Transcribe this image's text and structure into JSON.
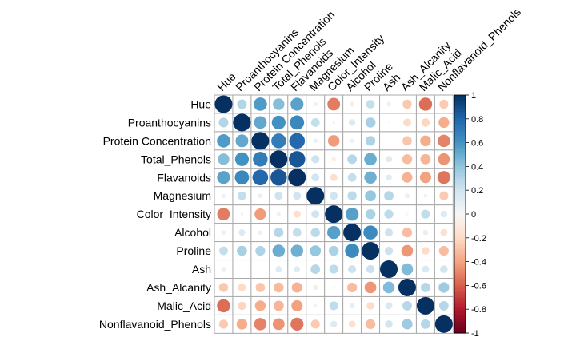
{
  "chart_data": {
    "type": "heatmap",
    "subtype": "correlation-circle",
    "variables": [
      "Hue",
      "Proanthocyanins",
      "Protein Concentration",
      "Total_Phenols",
      "Flavanoids",
      "Magnesium",
      "Color_Intensity",
      "Alcohol",
      "Proline",
      "Ash",
      "Ash_Alcanity",
      "Malic_Acid",
      "Nonflavanoid_Phenols"
    ],
    "matrix": [
      [
        1.0,
        0.3,
        0.57,
        0.43,
        0.54,
        0.06,
        -0.52,
        -0.07,
        0.24,
        -0.07,
        -0.27,
        -0.56,
        -0.26
      ],
      [
        0.3,
        1.0,
        0.52,
        0.61,
        0.65,
        0.24,
        -0.03,
        0.14,
        0.33,
        0.01,
        -0.2,
        -0.22,
        -0.37
      ],
      [
        0.57,
        0.52,
        1.0,
        0.7,
        0.79,
        0.07,
        -0.43,
        0.07,
        0.31,
        0.0,
        -0.28,
        -0.37,
        -0.5
      ],
      [
        0.43,
        0.61,
        0.7,
        1.0,
        0.86,
        0.21,
        -0.06,
        0.29,
        0.5,
        0.13,
        -0.32,
        -0.34,
        -0.45
      ],
      [
        0.54,
        0.65,
        0.79,
        0.86,
        1.0,
        0.2,
        -0.17,
        0.24,
        0.49,
        0.12,
        -0.35,
        -0.41,
        -0.54
      ],
      [
        0.06,
        0.24,
        0.07,
        0.21,
        0.2,
        1.0,
        0.2,
        0.27,
        0.39,
        0.29,
        -0.08,
        -0.05,
        -0.26
      ],
      [
        -0.52,
        -0.03,
        -0.43,
        -0.06,
        -0.17,
        0.2,
        1.0,
        0.55,
        0.32,
        0.26,
        0.02,
        0.25,
        0.14
      ],
      [
        -0.07,
        0.14,
        0.07,
        0.29,
        0.24,
        0.27,
        0.55,
        1.0,
        0.64,
        0.21,
        -0.31,
        0.09,
        -0.16
      ],
      [
        0.24,
        0.33,
        0.31,
        0.5,
        0.49,
        0.39,
        0.32,
        0.64,
        1.0,
        0.22,
        -0.44,
        -0.19,
        -0.31
      ],
      [
        -0.07,
        0.01,
        0.0,
        0.13,
        0.12,
        0.29,
        0.26,
        0.21,
        0.22,
        1.0,
        0.44,
        0.16,
        0.19
      ],
      [
        -0.27,
        -0.2,
        -0.28,
        -0.32,
        -0.35,
        -0.08,
        0.02,
        -0.31,
        -0.44,
        0.44,
        1.0,
        0.29,
        0.36
      ],
      [
        -0.56,
        -0.22,
        -0.37,
        -0.34,
        -0.41,
        -0.05,
        0.25,
        0.09,
        -0.19,
        0.16,
        0.29,
        1.0,
        0.29
      ],
      [
        -0.26,
        -0.37,
        -0.5,
        -0.45,
        -0.54,
        -0.26,
        0.14,
        -0.16,
        -0.31,
        0.19,
        0.36,
        0.29,
        1.0
      ]
    ],
    "colorbar": {
      "min": -1,
      "max": 1,
      "ticks": [
        "-1",
        "-0.8",
        "-0.6",
        "-0.4",
        "-0.2",
        "0",
        "0.2",
        "0.4",
        "0.6",
        "0.8",
        "1"
      ]
    },
    "colors": {
      "negative": "#67001F",
      "neutral": "#F7F7F7",
      "positive": "#053061",
      "grid": "#AAAAAA"
    },
    "xlabel": "",
    "ylabel": "",
    "title": ""
  }
}
